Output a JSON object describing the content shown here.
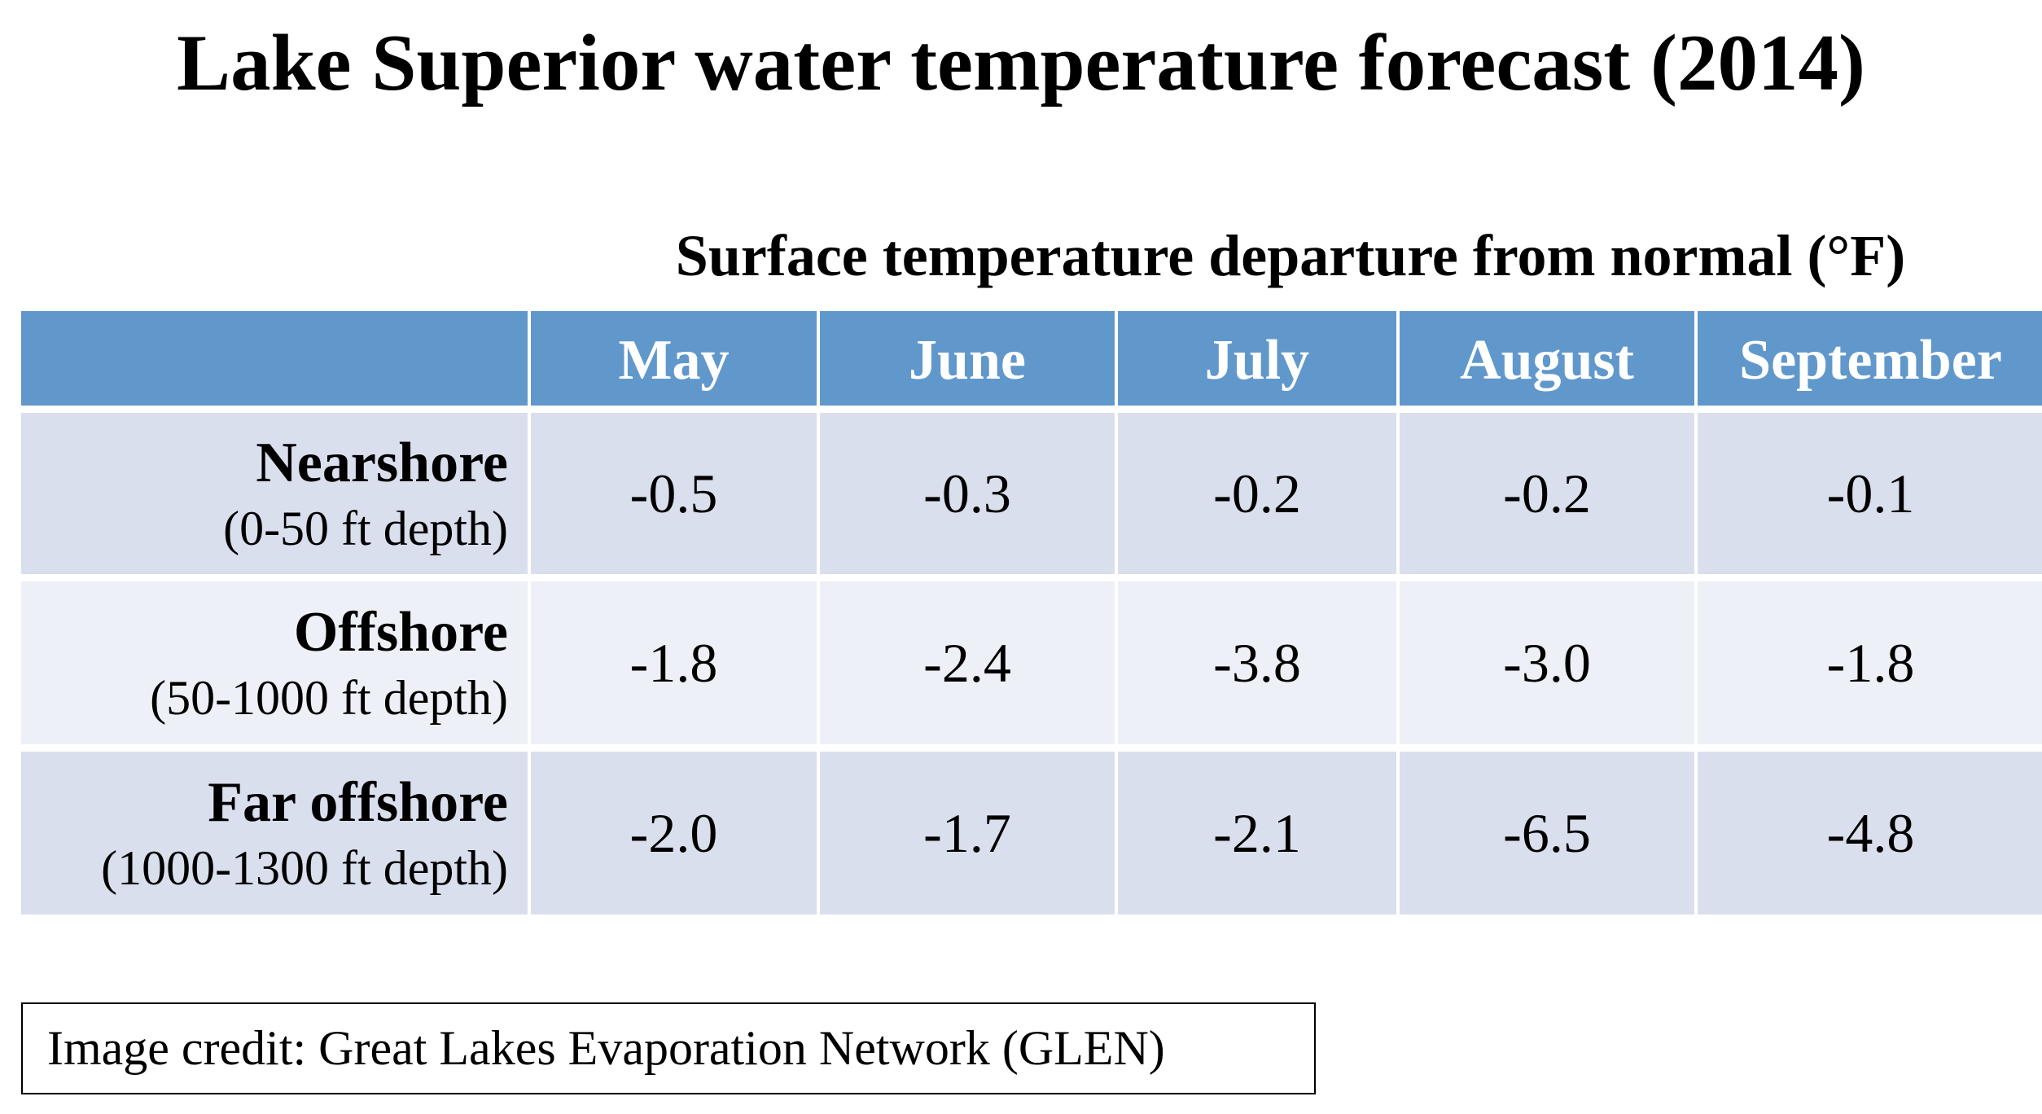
{
  "title": "Lake Superior water temperature forecast (2014)",
  "colors": {
    "header_fill": "#6198cb",
    "band_dark": "#dadfee",
    "band_light": "#edf0f6"
  },
  "chart_data": {
    "type": "table",
    "title": "Lake Superior water temperature forecast (2014)",
    "subtitle": "Surface temperature departure from normal (°F)",
    "columns": [
      "May",
      "June",
      "July",
      "August",
      "September"
    ],
    "rows": [
      {
        "name": "Nearshore",
        "detail": "(0-50 ft depth)",
        "values": [
          "-0.5",
          "-0.3",
          "-0.2",
          "-0.2",
          "-0.1"
        ]
      },
      {
        "name": "Offshore",
        "detail": "(50-1000 ft depth)",
        "values": [
          "-1.8",
          "-2.4",
          "-3.8",
          "-3.0",
          "-1.8"
        ]
      },
      {
        "name": "Far offshore",
        "detail": "(1000-1300 ft depth)",
        "values": [
          "-2.0",
          "-1.7",
          "-2.1",
          "-6.5",
          "-4.8"
        ]
      }
    ]
  },
  "credit": "Image credit: Great Lakes Evaporation Network (GLEN)"
}
